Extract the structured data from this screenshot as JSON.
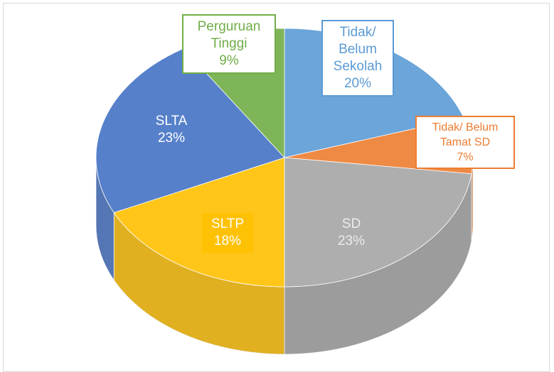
{
  "chart_data": {
    "type": "pie",
    "categories": [
      "Tidak/ Belum Sekolah",
      "Tidak/ Belum Tamat SD",
      "SD",
      "SLTP",
      "SLTA",
      "Perguruan Tinggi"
    ],
    "values": [
      20,
      7,
      23,
      18,
      23,
      9
    ],
    "value_labels": [
      "20%",
      "7%",
      "23%",
      "18%",
      "23%",
      "9%"
    ],
    "colors": [
      "#5b9bd5",
      "#ed7d31",
      "#a5a5a5",
      "#ffc000",
      "#4472c4",
      "#70ad47"
    ]
  }
}
